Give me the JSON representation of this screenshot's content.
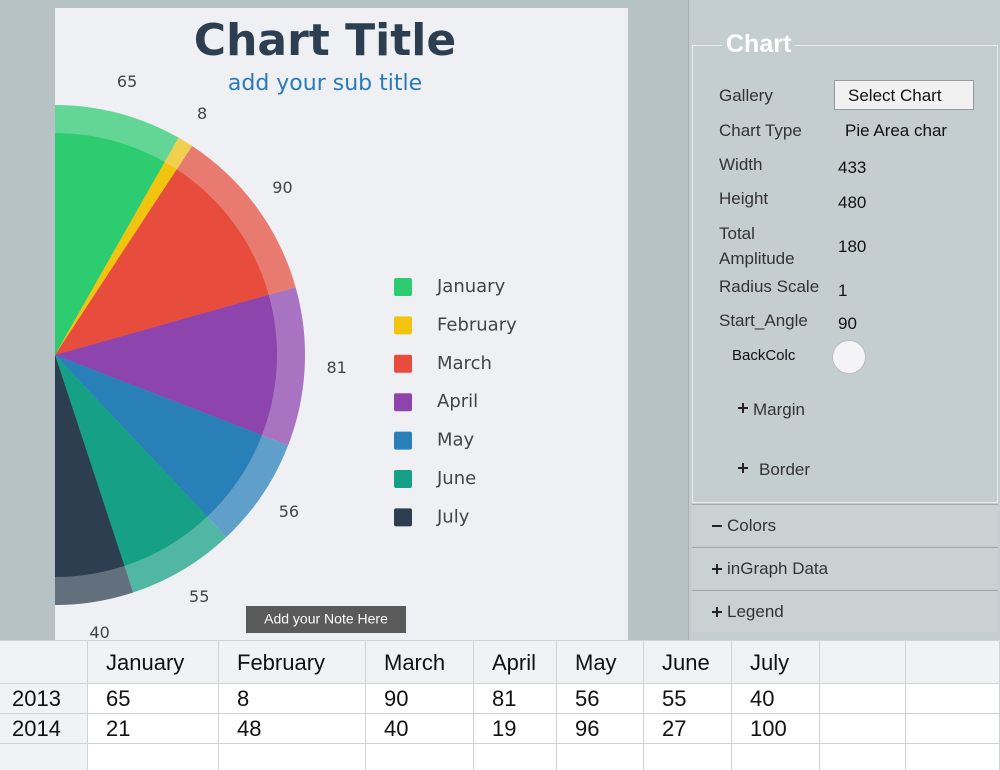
{
  "chart_data": {
    "type": "pie-area",
    "title": "Chart Title",
    "subtitle": "add your sub title",
    "note": "Add your Note Here",
    "categories": [
      "January",
      "February",
      "March",
      "April",
      "May",
      "June",
      "July"
    ],
    "colors": [
      "#2ecc71",
      "#f1c40f",
      "#e74c3c",
      "#8e44ad",
      "#2980b9",
      "#16a085",
      "#2c3e50"
    ],
    "series": [
      {
        "name": "2013",
        "values": [
          65,
          8,
          90,
          81,
          56,
          55,
          40
        ]
      },
      {
        "name": "2014",
        "values": [
          21,
          48,
          40,
          19,
          96,
          27,
          100
        ]
      }
    ]
  },
  "panel": {
    "title": "Chart",
    "fields": [
      {
        "label": "Gallery",
        "value": "Select Chart"
      },
      {
        "label": "Chart Type",
        "value": "Pie Area char"
      },
      {
        "label": "Width",
        "value": 433
      },
      {
        "label": "Height",
        "value": 480
      },
      {
        "label": "Total Amplitude",
        "value": 180
      },
      {
        "label": "Radius Scale",
        "value": 1
      },
      {
        "label": "Start_Angle",
        "value": 90
      },
      {
        "label": "BackColc"
      }
    ],
    "subsections": [
      "Margin",
      "Border"
    ],
    "sections": [
      "Colors",
      "inGraph Data",
      "Legend"
    ]
  }
}
